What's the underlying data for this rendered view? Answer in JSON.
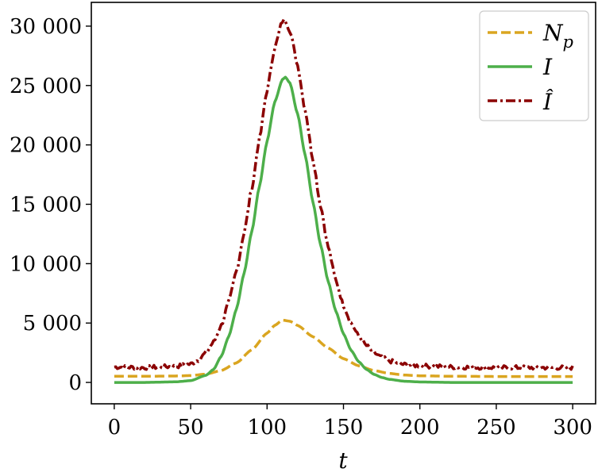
{
  "chart_data": {
    "type": "line",
    "xlabel": "t",
    "ylabel": "",
    "xlim": [
      -15,
      315
    ],
    "ylim": [
      -1800,
      32000
    ],
    "xticks": [
      0,
      50,
      100,
      150,
      200,
      250,
      300
    ],
    "xtick_labels": [
      "0",
      "50",
      "100",
      "150",
      "200",
      "250",
      "300"
    ],
    "yticks": [
      0,
      5000,
      10000,
      15000,
      20000,
      25000,
      30000
    ],
    "ytick_labels": [
      "0",
      "5 000",
      "10 000",
      "15 000",
      "20 000",
      "25 000",
      "30 000"
    ],
    "grid": false,
    "legend_position": "top-right",
    "series": [
      {
        "name": "N",
        "name_sub": "p",
        "style": "dashed",
        "color": "#DAA520",
        "x": [
          0,
          20,
          40,
          50,
          60,
          70,
          80,
          90,
          100,
          105,
          110,
          115,
          120,
          130,
          140,
          150,
          160,
          170,
          180,
          190,
          200,
          220,
          250,
          280,
          300
        ],
        "y": [
          520,
          520,
          540,
          580,
          700,
          1000,
          1650,
          2750,
          4150,
          4800,
          5250,
          5150,
          4800,
          3850,
          2900,
          2000,
          1400,
          1000,
          760,
          620,
          560,
          520,
          500,
          500,
          500
        ]
      },
      {
        "name": "I",
        "style": "solid",
        "color": "#4DAF4A",
        "x": [
          0,
          20,
          40,
          50,
          60,
          65,
          70,
          75,
          80,
          85,
          90,
          95,
          100,
          105,
          110,
          112,
          115,
          120,
          125,
          130,
          135,
          140,
          145,
          150,
          155,
          160,
          165,
          170,
          175,
          180,
          190,
          200,
          220,
          250,
          300
        ],
        "y": [
          0,
          0,
          50,
          150,
          600,
          1100,
          2200,
          3900,
          6200,
          9200,
          12700,
          16500,
          20300,
          23600,
          25500,
          25700,
          25200,
          22600,
          19100,
          15200,
          11600,
          8500,
          6000,
          4100,
          2700,
          1750,
          1100,
          680,
          420,
          260,
          100,
          40,
          0,
          0,
          0
        ]
      },
      {
        "name": "Î",
        "style": "dashdot",
        "color": "#8B0000",
        "noisy": true,
        "x": [
          0,
          20,
          40,
          50,
          55,
          60,
          65,
          70,
          75,
          80,
          85,
          90,
          95,
          100,
          105,
          110,
          112,
          115,
          120,
          125,
          130,
          135,
          140,
          145,
          150,
          155,
          160,
          165,
          170,
          175,
          180,
          190,
          200,
          210,
          220,
          250,
          280,
          300
        ],
        "y": [
          1300,
          1250,
          1350,
          1550,
          1900,
          2500,
          3400,
          4800,
          6800,
          9400,
          12600,
          16300,
          20500,
          24600,
          28200,
          30400,
          30500,
          29600,
          26700,
          22900,
          18800,
          14900,
          11400,
          8600,
          6500,
          5000,
          3900,
          3100,
          2500,
          2100,
          1800,
          1500,
          1400,
          1350,
          1300,
          1250,
          1250,
          1250
        ]
      }
    ]
  }
}
